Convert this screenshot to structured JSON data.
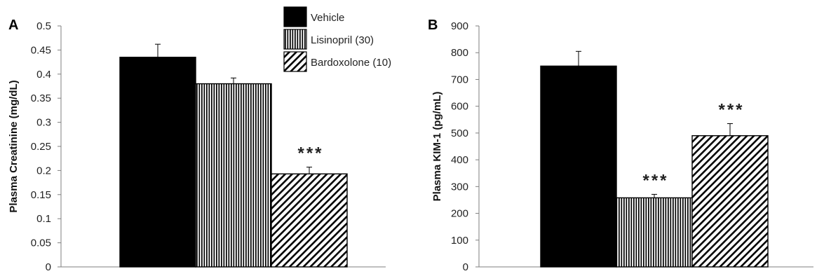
{
  "chart_data": [
    {
      "panel": "A",
      "type": "bar",
      "title": "",
      "xlabel": "",
      "ylabel": "Plasma Creatinine (mg/dL)",
      "ylim": [
        0,
        0.5
      ],
      "yticks": [
        "0",
        "0.05",
        "0.1",
        "0.15",
        "0.2",
        "0.25",
        "0.3",
        "0.35",
        "0.4",
        "0.45",
        "0.5"
      ],
      "series": [
        {
          "name": "Vehicle",
          "values": [
            0.435
          ],
          "error": [
            0.027
          ],
          "significance": ""
        },
        {
          "name": "Lisinopril (30)",
          "values": [
            0.38
          ],
          "error": [
            0.012
          ],
          "significance": ""
        },
        {
          "name": "Bardoxolone (10)",
          "values": [
            0.193
          ],
          "error": [
            0.014
          ],
          "significance": "***"
        }
      ],
      "grid": false,
      "legend": "top-right"
    },
    {
      "panel": "B",
      "type": "bar",
      "title": "",
      "xlabel": "",
      "ylabel": "Plasma KIM-1 (pg/mL)",
      "ylim": [
        0,
        900
      ],
      "yticks": [
        "0",
        "100",
        "200",
        "300",
        "400",
        "500",
        "600",
        "700",
        "800",
        "900"
      ],
      "series": [
        {
          "name": "Vehicle",
          "values": [
            750
          ],
          "error": [
            55
          ],
          "significance": ""
        },
        {
          "name": "Lisinopril (30)",
          "values": [
            258
          ],
          "error": [
            13
          ],
          "significance": "***"
        },
        {
          "name": "Bardoxolone (10)",
          "values": [
            490
          ],
          "error": [
            45
          ],
          "significance": "***"
        }
      ],
      "grid": false
    }
  ],
  "legend": {
    "items": [
      "Vehicle",
      "Lisinopril (30)",
      "Bardoxolone (10)"
    ]
  },
  "colors": {
    "bar_fill": "#000000",
    "axis": "#7f7f7f",
    "hatch_bg": "#ffffff"
  }
}
